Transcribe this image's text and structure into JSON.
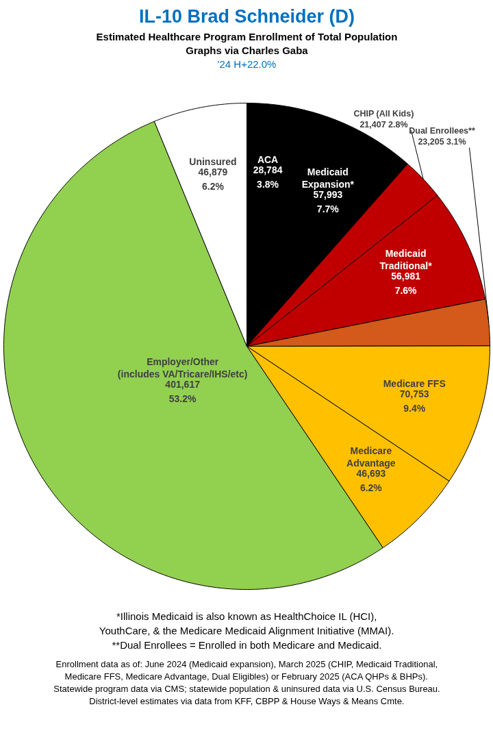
{
  "chart_data": {
    "type": "pie",
    "title": "IL-10 Brad Schneider (D)",
    "subtitle": "Estimated Healthcare Program Enrollment of Total Population\nGraphs via Charles Gaba",
    "categories": [
      "ACA",
      "Medicaid\nExpansion*",
      "CHIP (All Kids)",
      "Medicaid\nTraditional*",
      "Dual Enrollees**",
      "Medicare FFS",
      "Medicare\nAdvantage",
      "Employer/Other\n(includes VA/Tricare/IHS/etc)",
      "Uninsured"
    ],
    "values": [
      28784,
      57993,
      21407,
      56981,
      23205,
      70753,
      46693,
      401617,
      46879
    ],
    "value_labels": [
      "28,784\n3.8%",
      "57,993\n7.7%",
      "21,407 2.8%",
      "56,981\n7.6%",
      "23,205 3.1%",
      "70,753\n9.4%",
      "46,693\n6.2%",
      "401,617\n53.2%",
      "46,879\n6.2%"
    ],
    "colors": [
      "#000000",
      "#000000",
      "#c00000",
      "#c00000",
      "#d35a1a",
      "#ffc000",
      "#ffc000",
      "#92d050",
      "#ffffff"
    ],
    "legend": false,
    "annotations": [
      "'24 H+22.0%",
      "*Illinois Medicaid is also known as HealthChoice IL (HCI),\nYouthCare, & the Medicare Medicaid Alignment Initiative (MMAI).\n**Dual Enrollees = Enrolled in both Medicare and Medicaid.",
      "Enrollment data as of: June 2024 (Medicaid expansion), March 2025 (CHIP, Medicaid Traditional,\nMedicare FFS, Medicare Advantage, Dual Eligibles) or February 2025 (ACA QHPs & BHPs).\nStatewide program data via CMS; statewide population & uninsured data via U.S. Census Bureau.\nDistrict-level estimates via data from KFF, CBPP & House Ways & Means Cmte."
    ]
  }
}
